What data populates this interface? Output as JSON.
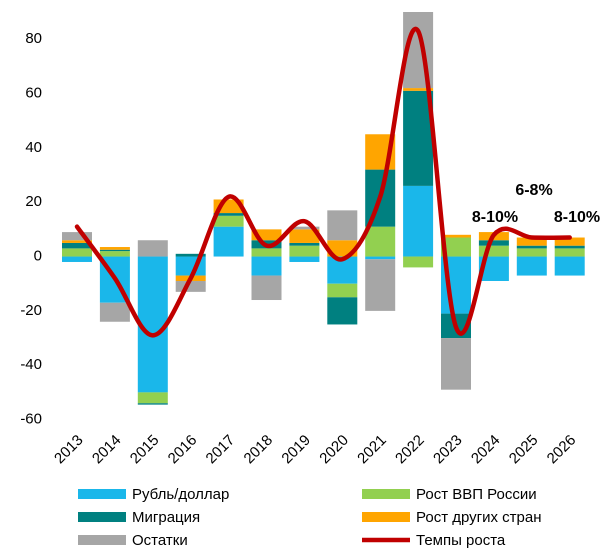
{
  "chart_data": {
    "type": "stacked_bar_line",
    "categories": [
      "2013",
      "2014",
      "2015",
      "2016",
      "2017",
      "2018",
      "2019",
      "2020",
      "2021",
      "2022",
      "2023",
      "2024",
      "2025",
      "2026"
    ],
    "ylim": [
      -62,
      90
    ],
    "yticks": [
      -60,
      -40,
      -20,
      0,
      20,
      40,
      60,
      80
    ],
    "series": [
      {
        "name": "Рубль/доллар",
        "color": "#1ab7ea",
        "values": [
          -2,
          -17,
          -50,
          -7,
          11,
          -7,
          -2,
          -10,
          -1,
          26,
          -21,
          -9,
          -7,
          -7
        ]
      },
      {
        "name": "Рост ВВП России",
        "color": "#92d050",
        "values": [
          3,
          2,
          -4,
          0,
          4,
          3,
          4,
          -5,
          11,
          -4,
          7,
          4,
          3,
          3
        ]
      },
      {
        "name": "Миграция",
        "color": "#008080",
        "values": [
          2,
          0.5,
          -0.5,
          1,
          1,
          3,
          1,
          -10,
          21,
          35,
          -9,
          2,
          1,
          1
        ]
      },
      {
        "name": "Рост других стран",
        "color": "#ffa500",
        "values": [
          1,
          1,
          0,
          -2,
          5,
          4,
          5,
          6,
          13,
          1,
          1,
          3,
          3,
          3
        ]
      },
      {
        "name": "Остатки",
        "color": "#a6a6a6",
        "values": [
          3,
          -7,
          6,
          -4,
          0,
          -9,
          1,
          11,
          -19,
          28,
          -19,
          0,
          0,
          0
        ]
      },
      {
        "name": "Темпы роста",
        "color": "#c00000",
        "type": "line",
        "values": [
          11,
          -8,
          -29,
          -8,
          22,
          4,
          13,
          -1,
          22,
          83,
          -26,
          8,
          7,
          7
        ]
      }
    ],
    "annotations": [
      "8-10%",
      "6-8%",
      "8-10%"
    ]
  }
}
